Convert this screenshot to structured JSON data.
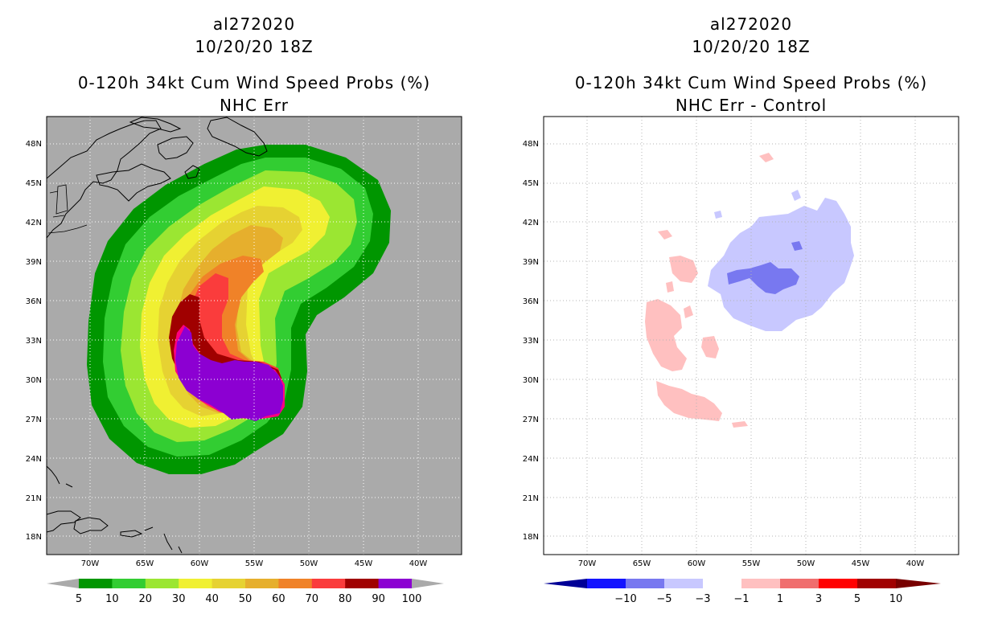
{
  "left_panel": {
    "storm_id": "al272020",
    "datetime": "10/20/20 18Z",
    "product": "0-120h 34kt Cum Wind Speed Probs (%)",
    "subtitle": "NHC Err",
    "background_color": "#aaaaaa",
    "colorbar": {
      "labels": [
        "5",
        "10",
        "20",
        "30",
        "40",
        "50",
        "60",
        "70",
        "80",
        "90",
        "100"
      ],
      "colors": [
        "#009600",
        "#32cd32",
        "#9be632",
        "#f0f032",
        "#e6d232",
        "#e6af2d",
        "#f08228",
        "#fa3c3c",
        "#a00000",
        "#8c00d2"
      ]
    }
  },
  "right_panel": {
    "storm_id": "al272020",
    "datetime": "10/20/20 18Z",
    "product": "0-120h 34kt Cum Wind Speed Probs (%)",
    "subtitle": "NHC Err - Control",
    "background_color": "#ffffff",
    "colorbar": {
      "labels": [
        "−10",
        "−5",
        "−3",
        "−1",
        "1",
        "3",
        "5",
        "10"
      ],
      "colors": [
        "#000096",
        "#1414ff",
        "#7878f0",
        "#c8c8ff",
        "#ffffff",
        "#ffc0c0",
        "#f06e6e",
        "#ff0000",
        "#a00000",
        "#780000"
      ]
    }
  },
  "axes": {
    "lat_labels": [
      "48N",
      "45N",
      "42N",
      "39N",
      "36N",
      "33N",
      "30N",
      "27N",
      "24N",
      "21N",
      "18N"
    ],
    "lon_labels": [
      "70W",
      "65W",
      "60W",
      "55W",
      "50W",
      "45W",
      "40W"
    ]
  }
}
